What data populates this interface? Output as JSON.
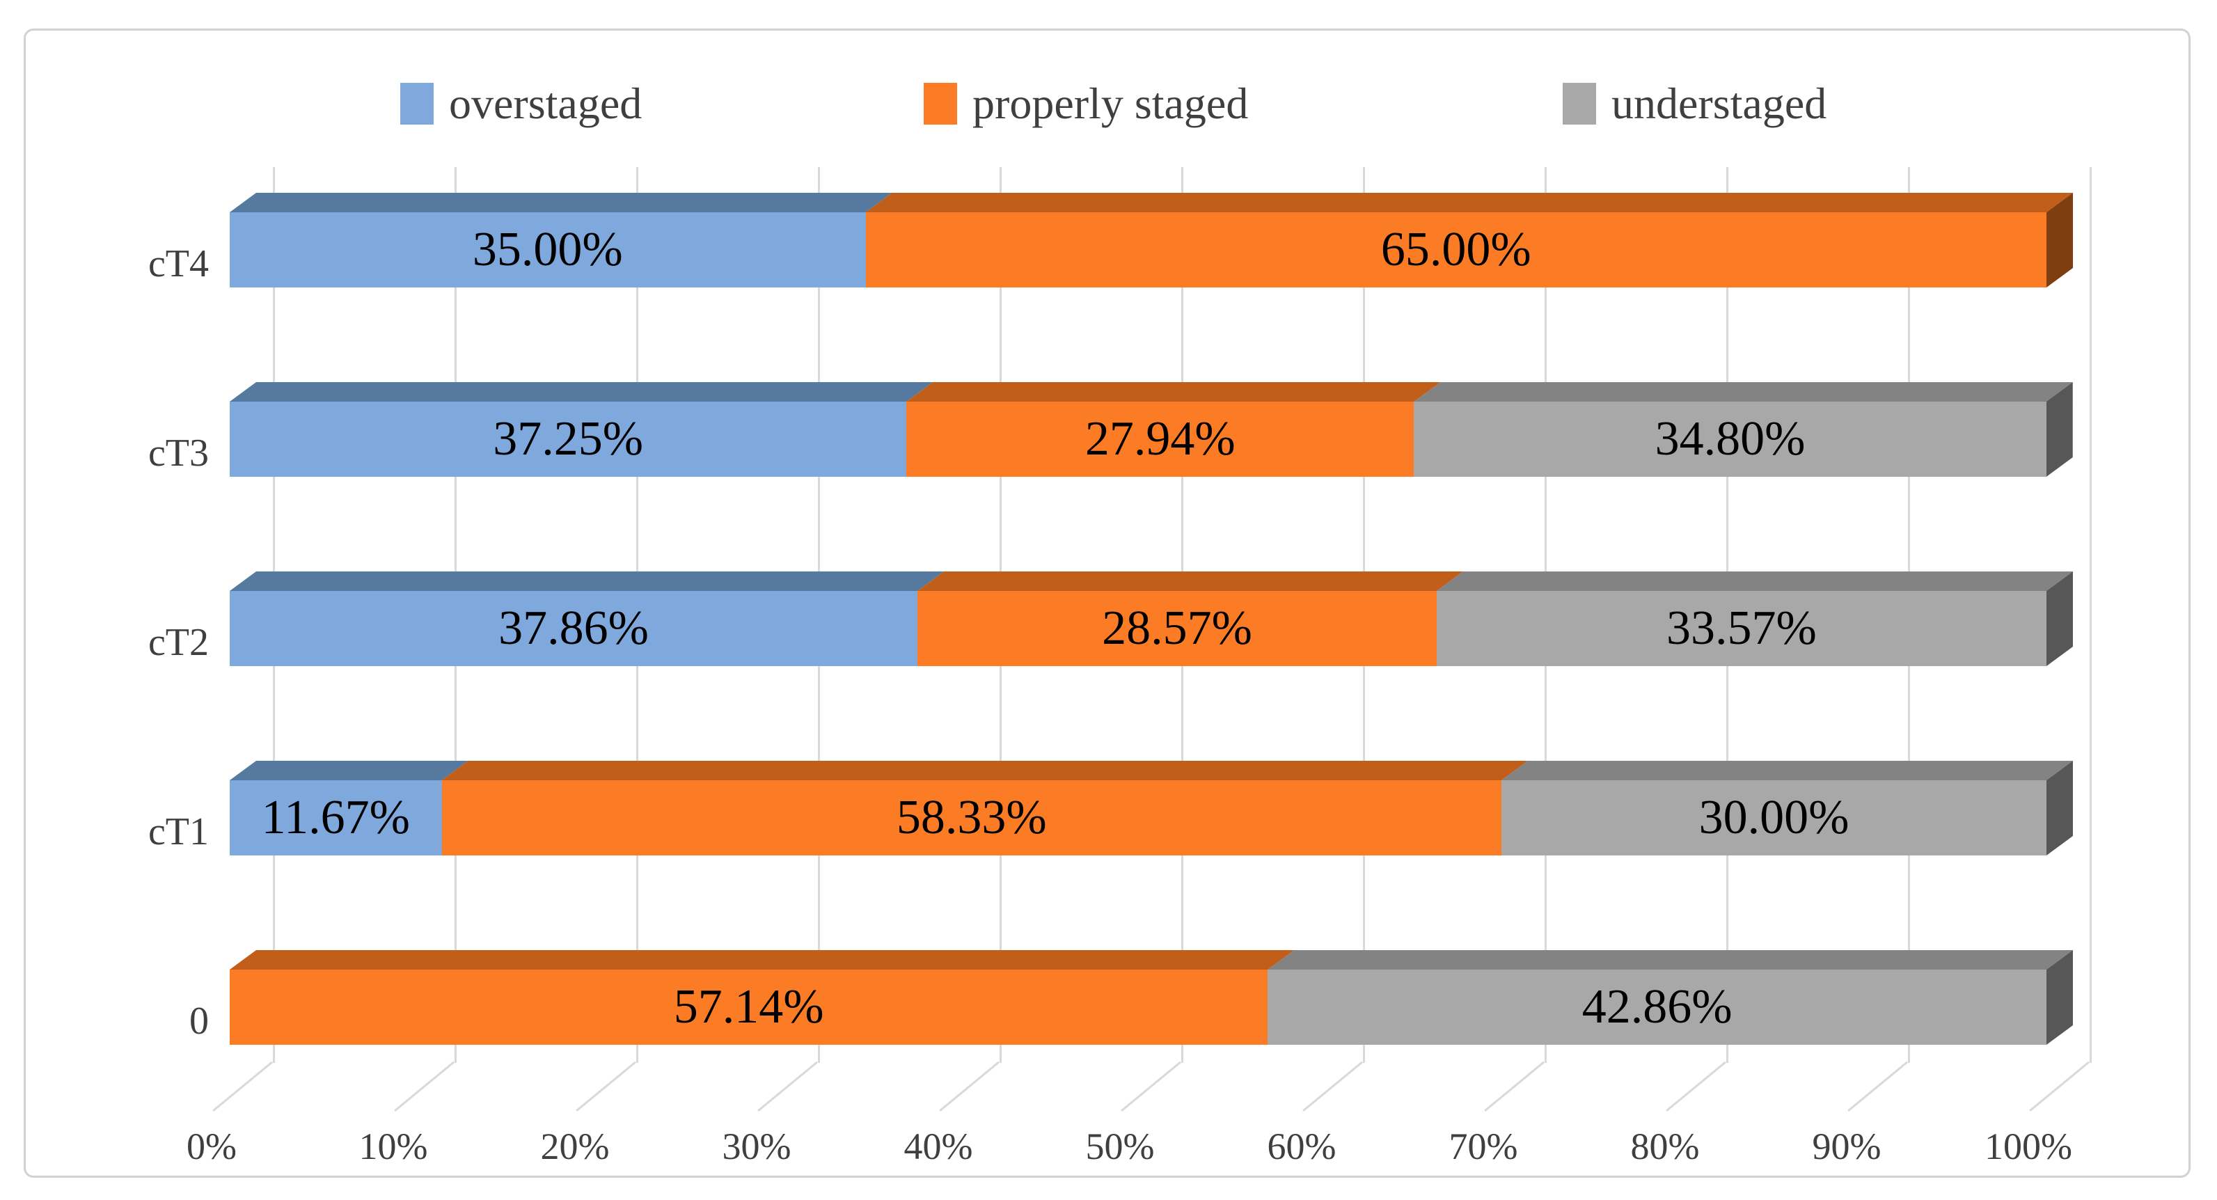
{
  "figure": {
    "background": "#FFFFFF",
    "border_color": "#D2D2D2"
  },
  "legend": {
    "position": "top",
    "items": [
      {
        "label": "overstaged",
        "color": "#7FA8DC"
      },
      {
        "label": "properly staged",
        "color": "#FB7C24"
      },
      {
        "label": "understaged",
        "color": "#A8A8A8"
      }
    ]
  },
  "chart_data": {
    "type": "bar",
    "subtype": "horizontal-stacked-100-percent-3d",
    "title": "",
    "xlabel": "",
    "ylabel": "",
    "grid": true,
    "legend_position": "top",
    "xlim": [
      0,
      100
    ],
    "categories": [
      "cT4",
      "cT3",
      "cT2",
      "cT1",
      "0"
    ],
    "series": [
      {
        "name": "overstaged",
        "color": "#7FA8DC",
        "top_color": "#56799F",
        "side_color": "#3E5A7C",
        "values": [
          35.0,
          37.25,
          37.86,
          11.67,
          0
        ]
      },
      {
        "name": "properly staged",
        "color": "#FB7C24",
        "top_color": "#C05E1A",
        "side_color": "#7E3E0F",
        "values": [
          65.0,
          27.94,
          28.57,
          58.33,
          57.14
        ]
      },
      {
        "name": "understaged",
        "color": "#A8A8A8",
        "top_color": "#838383",
        "side_color": "#575757",
        "values": [
          0,
          34.8,
          33.57,
          30.0,
          42.86
        ]
      }
    ],
    "value_labels": [
      [
        "35.00%",
        "65.00%",
        ""
      ],
      [
        "37.25%",
        "27.94%",
        "34.80%"
      ],
      [
        "37.86%",
        "28.57%",
        "33.57%"
      ],
      [
        "11.67%",
        "58.33%",
        "30.00%"
      ],
      [
        "",
        "57.14%",
        "42.86%"
      ]
    ],
    "x_ticks": [
      {
        "value": 0,
        "label": "0%"
      },
      {
        "value": 10,
        "label": "10%"
      },
      {
        "value": 20,
        "label": "20%"
      },
      {
        "value": 30,
        "label": "30%"
      },
      {
        "value": 40,
        "label": "40%"
      },
      {
        "value": 50,
        "label": "50%"
      },
      {
        "value": 60,
        "label": "60%"
      },
      {
        "value": 70,
        "label": "70%"
      },
      {
        "value": 80,
        "label": "80%"
      },
      {
        "value": 90,
        "label": "90%"
      },
      {
        "value": 100,
        "label": "100%"
      }
    ],
    "colors": {
      "gridline": "#D9D9D9",
      "tick_text": "#3F3F3F",
      "category_text": "#3F3F3F",
      "value_text": "#000000"
    }
  }
}
